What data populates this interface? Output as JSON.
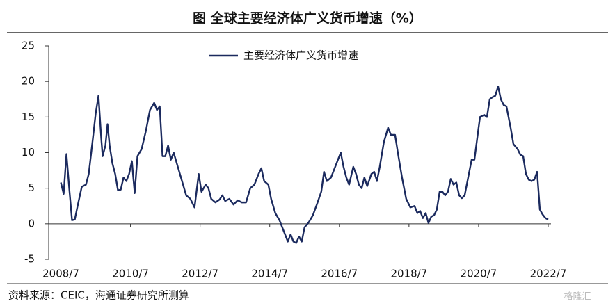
{
  "chart_data": {
    "type": "line",
    "title": "图  全球主要经济体广义货币增速（%）",
    "source": "资料来源：CEIC，海通证券研究所测算",
    "watermark": "格隆汇",
    "x": [
      2008.5,
      2008.58,
      2008.66,
      2008.74,
      2008.82,
      2008.9,
      2008.98,
      2009.1,
      2009.22,
      2009.3,
      2009.42,
      2009.5,
      2009.58,
      2009.66,
      2009.7,
      2009.78,
      2009.84,
      2009.9,
      2009.98,
      2010.06,
      2010.14,
      2010.22,
      2010.3,
      2010.38,
      2010.46,
      2010.54,
      2010.62,
      2010.7,
      2010.82,
      2010.94,
      2011.06,
      2011.18,
      2011.26,
      2011.34,
      2011.42,
      2011.5,
      2011.58,
      2011.66,
      2011.74,
      2011.86,
      2011.98,
      2012.1,
      2012.22,
      2012.34,
      2012.46,
      2012.54,
      2012.66,
      2012.74,
      2012.82,
      2012.94,
      2013.06,
      2013.14,
      2013.22,
      2013.34,
      2013.46,
      2013.58,
      2013.7,
      2013.82,
      2013.94,
      2014.06,
      2014.18,
      2014.26,
      2014.34,
      2014.46,
      2014.54,
      2014.66,
      2014.78,
      2014.9,
      2015.02,
      2015.1,
      2015.18,
      2015.26,
      2015.34,
      2015.42,
      2015.5,
      2015.62,
      2015.74,
      2015.86,
      2015.98,
      2016.06,
      2016.14,
      2016.26,
      2016.34,
      2016.46,
      2016.54,
      2016.62,
      2016.7,
      2016.78,
      2016.9,
      2016.98,
      2017.06,
      2017.14,
      2017.22,
      2017.3,
      2017.42,
      2017.5,
      2017.58,
      2017.66,
      2017.78,
      2017.9,
      2017.98,
      2018.1,
      2018.18,
      2018.3,
      2018.42,
      2018.54,
      2018.66,
      2018.74,
      2018.82,
      2018.9,
      2018.98,
      2019.06,
      2019.14,
      2019.22,
      2019.3,
      2019.38,
      2019.46,
      2019.54,
      2019.62,
      2019.7,
      2019.78,
      2019.86,
      2019.94,
      2020.02,
      2020.1,
      2020.18,
      2020.3,
      2020.38,
      2020.46,
      2020.54,
      2020.66,
      2020.74,
      2020.82,
      2020.9,
      2020.98,
      2021.06,
      2021.14,
      2021.22,
      2021.3,
      2021.42,
      2021.5,
      2021.62,
      2021.7,
      2021.78,
      2021.86,
      2021.94,
      2022.02,
      2022.1,
      2022.18,
      2022.26,
      2022.34,
      2022.42,
      2022.5
    ],
    "series": [
      {
        "name": "主要经济体广义货币增速",
        "color": "#1b2a5e",
        "values": [
          5.8,
          4.2,
          9.8,
          5,
          0.5,
          0.6,
          2.5,
          5.2,
          5.5,
          7,
          12,
          15.5,
          18,
          12,
          9.5,
          11,
          14,
          11,
          8.5,
          7,
          4.7,
          4.8,
          6.5,
          6,
          7,
          8.8,
          4.3,
          9.5,
          10.5,
          13,
          16,
          17,
          16,
          16.5,
          9.5,
          9.5,
          11,
          9,
          10,
          8,
          6,
          4,
          3.5,
          2.3,
          7,
          4.5,
          5.5,
          5,
          3.5,
          3,
          3.4,
          4,
          3.2,
          3.5,
          2.7,
          3.3,
          3,
          3,
          5,
          5.5,
          7,
          7.8,
          6,
          5.5,
          3.5,
          1.5,
          0.5,
          -1,
          -2.5,
          -1.5,
          -2.5,
          -2.7,
          -1.8,
          -2.5,
          -0.5,
          0.2,
          1.2,
          2.8,
          4.5,
          7.3,
          6,
          6.5,
          7.5,
          9,
          10,
          8,
          6.5,
          5.5,
          8,
          7,
          5.5,
          5,
          6.5,
          5.3,
          7,
          7.3,
          6,
          8,
          11.5,
          13.5,
          12.5,
          12.5,
          10,
          6.5,
          3.5,
          2.3,
          2.5,
          1.5,
          1.8,
          0.8,
          1.5,
          0.1,
          1,
          1.2,
          2,
          4.5,
          4.5,
          4,
          4.5,
          6.3,
          5.5,
          5.8,
          4,
          3.6,
          4,
          6,
          9,
          9,
          12,
          15,
          15.3,
          15,
          17.5,
          17.8,
          18,
          19.3,
          17.5,
          16.7,
          16.5,
          13.5,
          11.2,
          10.5,
          9.7,
          9.5,
          7,
          6.2,
          6,
          6.2,
          7.3,
          2,
          1.3,
          0.8,
          0.6
        ]
      }
    ],
    "xlim": [
      2008.15,
      2022.58
    ],
    "xticks": [
      {
        "value": 2008.5,
        "label": "2008/7"
      },
      {
        "value": 2010.5,
        "label": "2010/7"
      },
      {
        "value": 2012.5,
        "label": "2012/7"
      },
      {
        "value": 2014.5,
        "label": "2014/7"
      },
      {
        "value": 2016.5,
        "label": "2016/7"
      },
      {
        "value": 2018.5,
        "label": "2018/7"
      },
      {
        "value": 2020.5,
        "label": "2020/7"
      },
      {
        "value": 2022.5,
        "label": "2022/7"
      }
    ],
    "ylim": [
      -5,
      25
    ],
    "yticks": [
      -5,
      0,
      5,
      10,
      15,
      20,
      25
    ],
    "legend": "top"
  }
}
